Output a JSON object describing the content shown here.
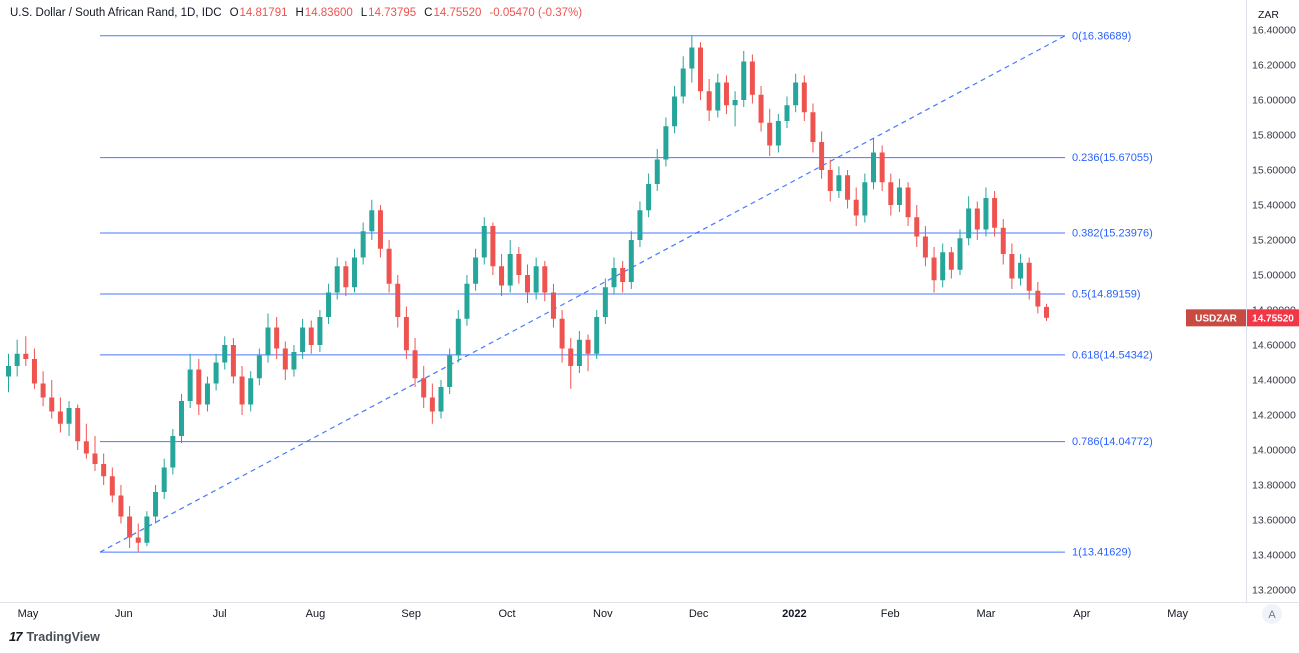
{
  "header": {
    "title": "U.S. Dollar / South African Rand, 1D, IDC",
    "ohlc": [
      {
        "label": "O",
        "value": "14.81791"
      },
      {
        "label": "H",
        "value": "14.83600"
      },
      {
        "label": "L",
        "value": "14.73795"
      },
      {
        "label": "C",
        "value": "14.75520"
      }
    ],
    "change": "-0.05470 (-0.37%)"
  },
  "price_scale": {
    "currency": "ZAR",
    "ticks": [
      "16.40000",
      "16.20000",
      "16.00000",
      "15.80000",
      "15.60000",
      "15.40000",
      "15.20000",
      "15.00000",
      "14.80000",
      "14.60000",
      "14.40000",
      "14.20000",
      "14.00000",
      "13.80000",
      "13.60000",
      "13.40000",
      "13.20000"
    ],
    "last_price_label": {
      "symbol": "USDZAR",
      "price": "14.75520"
    }
  },
  "time_scale": {
    "auto_button": "A"
  },
  "footer": {
    "logo_mark": "17",
    "logo_text": "TradingView"
  },
  "colors": {
    "up": "#26a69a",
    "down": "#ef5350",
    "fib": "#2962ff",
    "trend": "#2962ff",
    "badge_symbol_bg": "#c84a42",
    "badge_price_bg": "#f23645",
    "axis_text": "#363a45",
    "header_text": "#131722"
  },
  "chart_data": {
    "type": "candlestick",
    "title": "U.S. Dollar / South African Rand, 1D, IDC",
    "symbol": "USDZAR",
    "timeframe": "1D",
    "exchange": "IDC",
    "currency": "ZAR",
    "ylim": [
      13.1,
      16.55
    ],
    "x_labels": [
      {
        "label": "May"
      },
      {
        "label": "Jun"
      },
      {
        "label": "Jul"
      },
      {
        "label": "Aug"
      },
      {
        "label": "Sep"
      },
      {
        "label": "Oct"
      },
      {
        "label": "Nov"
      },
      {
        "label": "Dec"
      },
      {
        "label": "2022",
        "bold": true
      },
      {
        "label": "Feb"
      },
      {
        "label": "Mar"
      },
      {
        "label": "Apr"
      },
      {
        "label": "May"
      }
    ],
    "fib_levels": [
      {
        "label": "0(16.36689)",
        "price": 16.36689
      },
      {
        "label": "0.236(15.67055)",
        "price": 15.67055
      },
      {
        "label": "0.382(15.23976)",
        "price": 15.23976
      },
      {
        "label": "0.5(14.89159)",
        "price": 14.89159
      },
      {
        "label": "0.618(14.54342)",
        "price": 14.54342
      },
      {
        "label": "0.786(14.04772)",
        "price": 14.04772
      },
      {
        "label": "1(13.41629)",
        "price": 13.41629
      }
    ],
    "trendline": {
      "from_price": 13.41629,
      "to_price": 16.36689,
      "dashed": true
    },
    "last": {
      "open": 14.81791,
      "high": 14.836,
      "low": 14.73795,
      "close": 14.7552,
      "change": -0.0547,
      "change_pct": -0.37
    },
    "candles": [
      [
        14.42,
        14.55,
        14.33,
        14.48
      ],
      [
        14.48,
        14.63,
        14.42,
        14.55
      ],
      [
        14.55,
        14.65,
        14.48,
        14.52
      ],
      [
        14.52,
        14.58,
        14.35,
        14.38
      ],
      [
        14.38,
        14.45,
        14.25,
        14.3
      ],
      [
        14.3,
        14.4,
        14.18,
        14.22
      ],
      [
        14.22,
        14.3,
        14.1,
        14.15
      ],
      [
        14.15,
        14.28,
        14.08,
        14.24
      ],
      [
        14.24,
        14.26,
        14.0,
        14.05
      ],
      [
        14.05,
        14.15,
        13.95,
        13.98
      ],
      [
        13.98,
        14.08,
        13.88,
        13.92
      ],
      [
        13.92,
        13.98,
        13.8,
        13.85
      ],
      [
        13.85,
        13.9,
        13.7,
        13.74
      ],
      [
        13.74,
        13.8,
        13.58,
        13.62
      ],
      [
        13.62,
        13.68,
        13.44,
        13.5
      ],
      [
        13.5,
        13.58,
        13.42,
        13.47
      ],
      [
        13.47,
        13.65,
        13.45,
        13.62
      ],
      [
        13.62,
        13.8,
        13.58,
        13.76
      ],
      [
        13.76,
        13.95,
        13.72,
        13.9
      ],
      [
        13.9,
        14.12,
        13.86,
        14.08
      ],
      [
        14.08,
        14.32,
        14.04,
        14.28
      ],
      [
        14.28,
        14.55,
        14.24,
        14.46
      ],
      [
        14.46,
        14.52,
        14.2,
        14.26
      ],
      [
        14.26,
        14.42,
        14.22,
        14.38
      ],
      [
        14.38,
        14.55,
        14.34,
        14.5
      ],
      [
        14.5,
        14.65,
        14.46,
        14.6
      ],
      [
        14.6,
        14.64,
        14.38,
        14.42
      ],
      [
        14.42,
        14.48,
        14.2,
        14.26
      ],
      [
        14.26,
        14.45,
        14.22,
        14.41
      ],
      [
        14.41,
        14.58,
        14.37,
        14.54
      ],
      [
        14.54,
        14.78,
        14.5,
        14.7
      ],
      [
        14.7,
        14.76,
        14.52,
        14.58
      ],
      [
        14.58,
        14.62,
        14.4,
        14.46
      ],
      [
        14.46,
        14.6,
        14.42,
        14.56
      ],
      [
        14.56,
        14.75,
        14.52,
        14.7
      ],
      [
        14.7,
        14.74,
        14.55,
        14.6
      ],
      [
        14.6,
        14.8,
        14.56,
        14.76
      ],
      [
        14.76,
        14.95,
        14.72,
        14.9
      ],
      [
        14.9,
        15.1,
        14.86,
        15.05
      ],
      [
        15.05,
        15.08,
        14.88,
        14.93
      ],
      [
        14.93,
        15.15,
        14.9,
        15.1
      ],
      [
        15.1,
        15.3,
        15.06,
        15.25
      ],
      [
        15.25,
        15.43,
        15.2,
        15.37
      ],
      [
        15.37,
        15.4,
        15.1,
        15.15
      ],
      [
        15.15,
        15.2,
        14.9,
        14.95
      ],
      [
        14.95,
        15.0,
        14.7,
        14.76
      ],
      [
        14.76,
        14.82,
        14.52,
        14.57
      ],
      [
        14.57,
        14.64,
        14.36,
        14.41
      ],
      [
        14.41,
        14.48,
        14.24,
        14.3
      ],
      [
        14.3,
        14.38,
        14.15,
        14.22
      ],
      [
        14.22,
        14.4,
        14.18,
        14.36
      ],
      [
        14.36,
        14.58,
        14.32,
        14.54
      ],
      [
        14.54,
        14.8,
        14.5,
        14.75
      ],
      [
        14.75,
        15.0,
        14.71,
        14.95
      ],
      [
        14.95,
        15.15,
        14.91,
        15.1
      ],
      [
        15.1,
        15.33,
        15.06,
        15.28
      ],
      [
        15.28,
        15.3,
        15.0,
        15.05
      ],
      [
        15.05,
        15.12,
        14.88,
        14.94
      ],
      [
        14.94,
        15.2,
        14.9,
        15.12
      ],
      [
        15.12,
        15.16,
        14.95,
        15.0
      ],
      [
        15.0,
        15.06,
        14.84,
        14.9
      ],
      [
        14.9,
        15.1,
        14.86,
        15.05
      ],
      [
        15.05,
        15.08,
        14.85,
        14.9
      ],
      [
        14.9,
        14.95,
        14.7,
        14.75
      ],
      [
        14.75,
        14.8,
        14.5,
        14.58
      ],
      [
        14.58,
        14.64,
        14.35,
        14.48
      ],
      [
        14.48,
        14.68,
        14.44,
        14.63
      ],
      [
        14.63,
        14.66,
        14.45,
        14.55
      ],
      [
        14.55,
        14.8,
        14.52,
        14.76
      ],
      [
        14.76,
        14.98,
        14.72,
        14.93
      ],
      [
        14.93,
        15.1,
        14.89,
        15.04
      ],
      [
        15.04,
        15.08,
        14.9,
        14.96
      ],
      [
        14.96,
        15.25,
        14.92,
        15.2
      ],
      [
        15.2,
        15.42,
        15.16,
        15.37
      ],
      [
        15.37,
        15.58,
        15.33,
        15.52
      ],
      [
        15.52,
        15.72,
        15.48,
        15.66
      ],
      [
        15.66,
        15.9,
        15.62,
        15.85
      ],
      [
        15.85,
        16.08,
        15.81,
        16.02
      ],
      [
        16.02,
        16.25,
        15.98,
        16.18
      ],
      [
        16.18,
        16.37,
        16.1,
        16.3
      ],
      [
        16.3,
        16.33,
        16.0,
        16.05
      ],
      [
        16.05,
        16.12,
        15.88,
        15.94
      ],
      [
        15.94,
        16.15,
        15.9,
        16.1
      ],
      [
        16.1,
        16.14,
        15.92,
        15.97
      ],
      [
        15.97,
        16.05,
        15.85,
        16.0
      ],
      [
        16.0,
        16.28,
        15.96,
        16.22
      ],
      [
        16.22,
        16.26,
        15.98,
        16.03
      ],
      [
        16.03,
        16.08,
        15.82,
        15.87
      ],
      [
        15.87,
        15.95,
        15.68,
        15.74
      ],
      [
        15.74,
        15.92,
        15.7,
        15.88
      ],
      [
        15.88,
        16.02,
        15.84,
        15.97
      ],
      [
        15.97,
        16.15,
        15.93,
        16.1
      ],
      [
        16.1,
        16.14,
        15.88,
        15.93
      ],
      [
        15.93,
        15.98,
        15.7,
        15.76
      ],
      [
        15.76,
        15.82,
        15.55,
        15.6
      ],
      [
        15.6,
        15.66,
        15.42,
        15.48
      ],
      [
        15.48,
        15.62,
        15.44,
        15.57
      ],
      [
        15.57,
        15.6,
        15.38,
        15.43
      ],
      [
        15.43,
        15.5,
        15.28,
        15.34
      ],
      [
        15.34,
        15.58,
        15.3,
        15.53
      ],
      [
        15.53,
        15.78,
        15.49,
        15.7
      ],
      [
        15.7,
        15.74,
        15.48,
        15.53
      ],
      [
        15.53,
        15.58,
        15.34,
        15.4
      ],
      [
        15.4,
        15.55,
        15.36,
        15.5
      ],
      [
        15.5,
        15.53,
        15.28,
        15.33
      ],
      [
        15.33,
        15.4,
        15.16,
        15.22
      ],
      [
        15.22,
        15.28,
        15.05,
        15.1
      ],
      [
        15.1,
        15.16,
        14.9,
        14.97
      ],
      [
        14.97,
        15.18,
        14.93,
        15.13
      ],
      [
        15.13,
        15.16,
        14.98,
        15.03
      ],
      [
        15.03,
        15.26,
        15.0,
        15.21
      ],
      [
        15.21,
        15.45,
        15.17,
        15.38
      ],
      [
        15.38,
        15.42,
        15.2,
        15.26
      ],
      [
        15.26,
        15.5,
        15.22,
        15.44
      ],
      [
        15.44,
        15.48,
        15.22,
        15.27
      ],
      [
        15.27,
        15.32,
        15.06,
        15.12
      ],
      [
        15.12,
        15.18,
        14.92,
        14.98
      ],
      [
        14.98,
        15.12,
        14.94,
        15.07
      ],
      [
        15.07,
        15.1,
        14.86,
        14.91
      ],
      [
        14.91,
        14.96,
        14.78,
        14.82
      ],
      [
        14.81791,
        14.836,
        14.73795,
        14.7552
      ]
    ]
  }
}
